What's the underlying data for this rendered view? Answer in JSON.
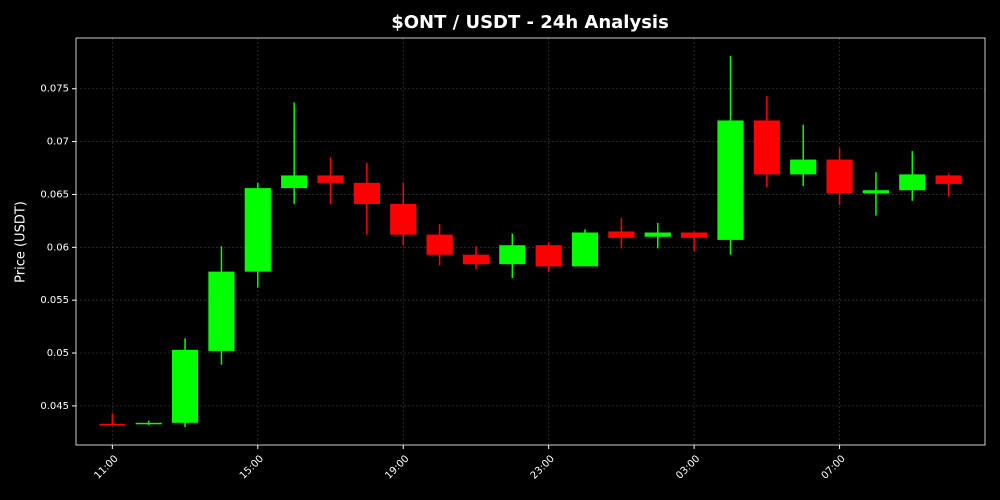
{
  "chart_data": {
    "type": "candlestick",
    "title": "$ONT / USDT - 24h Analysis",
    "y_label": "Price (USDT)",
    "categories": [
      "11:00",
      null,
      null,
      null,
      "15:00",
      null,
      null,
      null,
      "19:00",
      null,
      null,
      null,
      "23:00",
      null,
      null,
      null,
      "03:00",
      null,
      null,
      null,
      "07:00",
      null,
      null,
      null
    ],
    "open": [
      0.0433,
      0.0433,
      0.0434,
      0.0502,
      0.0577,
      0.0656,
      0.0668,
      0.0661,
      0.0641,
      0.0612,
      0.0593,
      0.0584,
      0.0602,
      0.0582,
      0.0615,
      0.061,
      0.0614,
      0.0607,
      0.072,
      0.0669,
      0.0683,
      0.0651,
      0.0654,
      0.0668
    ],
    "high": [
      0.0443,
      0.0436,
      0.0514,
      0.0601,
      0.0661,
      0.0737,
      0.0685,
      0.068,
      0.0661,
      0.0622,
      0.0601,
      0.0613,
      0.0605,
      0.0617,
      0.0628,
      0.0623,
      0.0615,
      0.0781,
      0.0743,
      0.0716,
      0.0694,
      0.0671,
      0.0691,
      0.067
    ],
    "low": [
      0.0432,
      0.0432,
      0.043,
      0.0489,
      0.0562,
      0.0641,
      0.0641,
      0.0612,
      0.0602,
      0.0583,
      0.0579,
      0.0571,
      0.0577,
      0.0582,
      0.0599,
      0.0599,
      0.0596,
      0.0593,
      0.0657,
      0.0658,
      0.064,
      0.063,
      0.0644,
      0.0648
    ],
    "close": [
      0.0432,
      0.0434,
      0.0503,
      0.0577,
      0.0656,
      0.0668,
      0.0661,
      0.0641,
      0.0612,
      0.0593,
      0.0584,
      0.0602,
      0.0582,
      0.0614,
      0.0609,
      0.0614,
      0.0609,
      0.072,
      0.0669,
      0.0683,
      0.0651,
      0.0654,
      0.0669,
      0.066
    ],
    "up_color": "#00ff00",
    "down_color": "#ff0000",
    "ylim": [
      0.0413,
      0.0798
    ],
    "yticks": [
      0.045,
      0.05,
      0.055,
      0.06,
      0.065,
      0.07,
      0.075
    ],
    "grid": true
  }
}
